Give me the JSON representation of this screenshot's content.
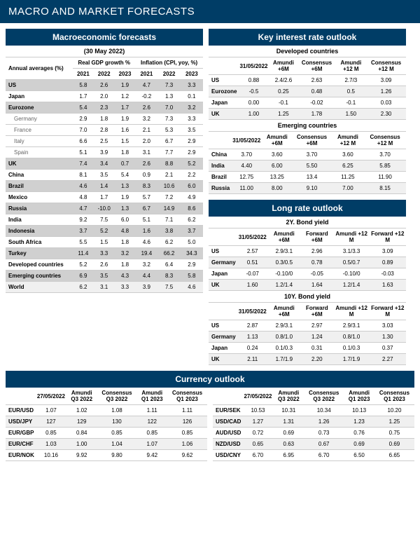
{
  "colors": {
    "header_bg": "#003d66",
    "header_text": "#ffffff",
    "shaded_row": "#d0d0d0",
    "light_row": "#f0f0f0",
    "border": "#cccccc",
    "indent_text": "#666666",
    "body_bg": "#ffffff"
  },
  "fonts": {
    "family": "Arial, Helvetica, sans-serif",
    "header_size": 15,
    "section_title_size": 12,
    "sub_title_size": 9,
    "table_size": 8
  },
  "page_title": "MACRO AND MARKET FORECASTS",
  "macro": {
    "title": "Macroeconomic forecasts",
    "date": "(30 May 2022)",
    "annual_label": "Annual averages (%)",
    "gdp_label": "Real GDP growth %",
    "inflation_label": "Inflation (CPI, yoy, %)",
    "years": [
      "2021",
      "2022",
      "2023",
      "2021",
      "2022",
      "2023"
    ],
    "rows": [
      {
        "label": "US",
        "shade": true,
        "vals": [
          "5.8",
          "2.6",
          "1.9",
          "4.7",
          "7.3",
          "3.3"
        ]
      },
      {
        "label": "Japan",
        "vals": [
          "1.7",
          "2.0",
          "1.2",
          "-0.2",
          "1.3",
          "0.1"
        ]
      },
      {
        "label": "Eurozone",
        "shade": true,
        "vals": [
          "5.4",
          "2.3",
          "1.7",
          "2.6",
          "7.0",
          "3.2"
        ]
      },
      {
        "label": "Germany",
        "indent": true,
        "vals": [
          "2.9",
          "1.8",
          "1.9",
          "3.2",
          "7.3",
          "3.3"
        ]
      },
      {
        "label": "France",
        "indent": true,
        "vals": [
          "7.0",
          "2.8",
          "1.6",
          "2.1",
          "5.3",
          "3.5"
        ]
      },
      {
        "label": "Italy",
        "indent": true,
        "vals": [
          "6.6",
          "2.5",
          "1.5",
          "2.0",
          "6.7",
          "2.9"
        ]
      },
      {
        "label": "Spain",
        "indent": true,
        "vals": [
          "5.1",
          "3.9",
          "1.8",
          "3.1",
          "7.7",
          "2.9"
        ]
      },
      {
        "label": "UK",
        "shade": true,
        "vals": [
          "7.4",
          "3.4",
          "0.7",
          "2.6",
          "8.8",
          "5.2"
        ]
      },
      {
        "label": "China",
        "vals": [
          "8.1",
          "3.5",
          "5.4",
          "0.9",
          "2.1",
          "2.2"
        ]
      },
      {
        "label": "Brazil",
        "shade": true,
        "vals": [
          "4.6",
          "1.4",
          "1.3",
          "8.3",
          "10.6",
          "6.0"
        ]
      },
      {
        "label": "Mexico",
        "vals": [
          "4.8",
          "1.7",
          "1.9",
          "5.7",
          "7.2",
          "4.9"
        ]
      },
      {
        "label": "Russia",
        "shade": true,
        "vals": [
          "4.7",
          "-10.0",
          "1.3",
          "6.7",
          "14.9",
          "8.6"
        ]
      },
      {
        "label": "India",
        "vals": [
          "9.2",
          "7.5",
          "6.0",
          "5.1",
          "7.1",
          "6.2"
        ]
      },
      {
        "label": "Indonesia",
        "shade": true,
        "vals": [
          "3.7",
          "5.2",
          "4.8",
          "1.6",
          "3.8",
          "3.7"
        ]
      },
      {
        "label": "South Africa",
        "vals": [
          "5.5",
          "1.5",
          "1.8",
          "4.6",
          "6.2",
          "5.0"
        ]
      },
      {
        "label": "Turkey",
        "shade": true,
        "vals": [
          "11.4",
          "3.3",
          "3.2",
          "19.4",
          "66.2",
          "34.3"
        ]
      },
      {
        "label": "Developed countries",
        "vals": [
          "5.2",
          "2.6",
          "1.8",
          "3.2",
          "6.4",
          "2.9"
        ]
      },
      {
        "label": "Emerging countries",
        "shade": true,
        "vals": [
          "6.9",
          "3.5",
          "4.3",
          "4.4",
          "8.3",
          "5.8"
        ]
      },
      {
        "label": "World",
        "light": true,
        "vals": [
          "6.2",
          "3.1",
          "3.3",
          "3.9",
          "7.5",
          "4.6"
        ]
      }
    ]
  },
  "interest": {
    "title": "Key interest rate outlook",
    "headers": [
      "31/05/2022",
      "Amundi +6M",
      "Consensus +6M",
      "Amundi +12 M",
      "Consensus +12 M"
    ],
    "developed": {
      "title": "Developed countries",
      "rows": [
        {
          "label": "US",
          "vals": [
            "0.88",
            "2.4/2.6",
            "2.63",
            "2.7/3",
            "3.09"
          ]
        },
        {
          "label": "Eurozone",
          "vals": [
            "-0.5",
            "0.25",
            "0.48",
            "0.5",
            "1.26"
          ]
        },
        {
          "label": "Japan",
          "vals": [
            "0.00",
            "-0.1",
            "-0.02",
            "-0.1",
            "0.03"
          ]
        },
        {
          "label": "UK",
          "vals": [
            "1.00",
            "1.25",
            "1.78",
            "1.50",
            "2.30"
          ]
        }
      ]
    },
    "emerging": {
      "title": "Emerging countries",
      "rows": [
        {
          "label": "China",
          "vals": [
            "3.70",
            "3.60",
            "3.70",
            "3.60",
            "3.70"
          ]
        },
        {
          "label": "India",
          "vals": [
            "4.40",
            "6.00",
            "5.50",
            "6.25",
            "5.85"
          ]
        },
        {
          "label": "Brazil",
          "vals": [
            "12.75",
            "13.25",
            "13.4",
            "11.25",
            "11.90"
          ]
        },
        {
          "label": "Russia",
          "vals": [
            "11.00",
            "8.00",
            "9.10",
            "7.00",
            "8.15"
          ]
        }
      ]
    }
  },
  "longrate": {
    "title": "Long rate outlook",
    "headers": [
      "31/05/2022",
      "Amundi +6M",
      "Forward +6M",
      "Amundi +12 M",
      "Forward +12 M"
    ],
    "y2": {
      "title": "2Y. Bond yield",
      "rows": [
        {
          "label": "US",
          "vals": [
            "2.57",
            "2.9/3.1",
            "2.96",
            "3.1/3.3",
            "3.09"
          ]
        },
        {
          "label": "Germany",
          "vals": [
            "0.51",
            "0.3/0.5",
            "0.78",
            "0.5/0.7",
            "0.89"
          ]
        },
        {
          "label": "Japan",
          "vals": [
            "-0.07",
            "-0.10/0",
            "-0.05",
            "-0.10/0",
            "-0.03"
          ]
        },
        {
          "label": "UK",
          "vals": [
            "1.60",
            "1.2/1.4",
            "1.64",
            "1.2/1.4",
            "1.63"
          ]
        }
      ]
    },
    "y10": {
      "title": "10Y. Bond yield",
      "rows": [
        {
          "label": "US",
          "vals": [
            "2.87",
            "2.9/3.1",
            "2.97",
            "2.9/3.1",
            "3.03"
          ]
        },
        {
          "label": "Germany",
          "vals": [
            "1.13",
            "0.8/1.0",
            "1.24",
            "0.8/1.0",
            "1.30"
          ]
        },
        {
          "label": "Japan",
          "vals": [
            "0.24",
            "0.1/0.3",
            "0.31",
            "0.1/0.3",
            "0.37"
          ]
        },
        {
          "label": "UK",
          "vals": [
            "2.11",
            "1.7/1.9",
            "2.20",
            "1.7/1.9",
            "2.27"
          ]
        }
      ]
    }
  },
  "currency": {
    "title": "Currency outlook",
    "headers": [
      "27/05/2022",
      "Amundi Q3 2022",
      "Consensus Q3 2022",
      "Amundi Q1 2023",
      "Consensus Q1 2023"
    ],
    "left": [
      {
        "label": "EUR/USD",
        "vals": [
          "1.07",
          "1.02",
          "1.08",
          "1.11",
          "1.11"
        ]
      },
      {
        "label": "USD/JPY",
        "vals": [
          "127",
          "129",
          "130",
          "122",
          "126"
        ]
      },
      {
        "label": "EUR/GBP",
        "vals": [
          "0.85",
          "0.84",
          "0.85",
          "0.85",
          "0.85"
        ]
      },
      {
        "label": "EUR/CHF",
        "vals": [
          "1.03",
          "1.00",
          "1.04",
          "1.07",
          "1.06"
        ]
      },
      {
        "label": "EUR/NOK",
        "vals": [
          "10.16",
          "9.92",
          "9.80",
          "9.42",
          "9.62"
        ]
      }
    ],
    "right": [
      {
        "label": "EUR/SEK",
        "vals": [
          "10.53",
          "10.31",
          "10.34",
          "10.13",
          "10.20"
        ]
      },
      {
        "label": "USD/CAD",
        "vals": [
          "1.27",
          "1.31",
          "1.26",
          "1.23",
          "1.25"
        ]
      },
      {
        "label": "AUD/USD",
        "vals": [
          "0.72",
          "0.69",
          "0.73",
          "0.76",
          "0.75"
        ]
      },
      {
        "label": "NZD/USD",
        "vals": [
          "0.65",
          "0.63",
          "0.67",
          "0.69",
          "0.69"
        ]
      },
      {
        "label": "USD/CNY",
        "vals": [
          "6.70",
          "6.95",
          "6.70",
          "6.50",
          "6.65"
        ]
      }
    ]
  }
}
